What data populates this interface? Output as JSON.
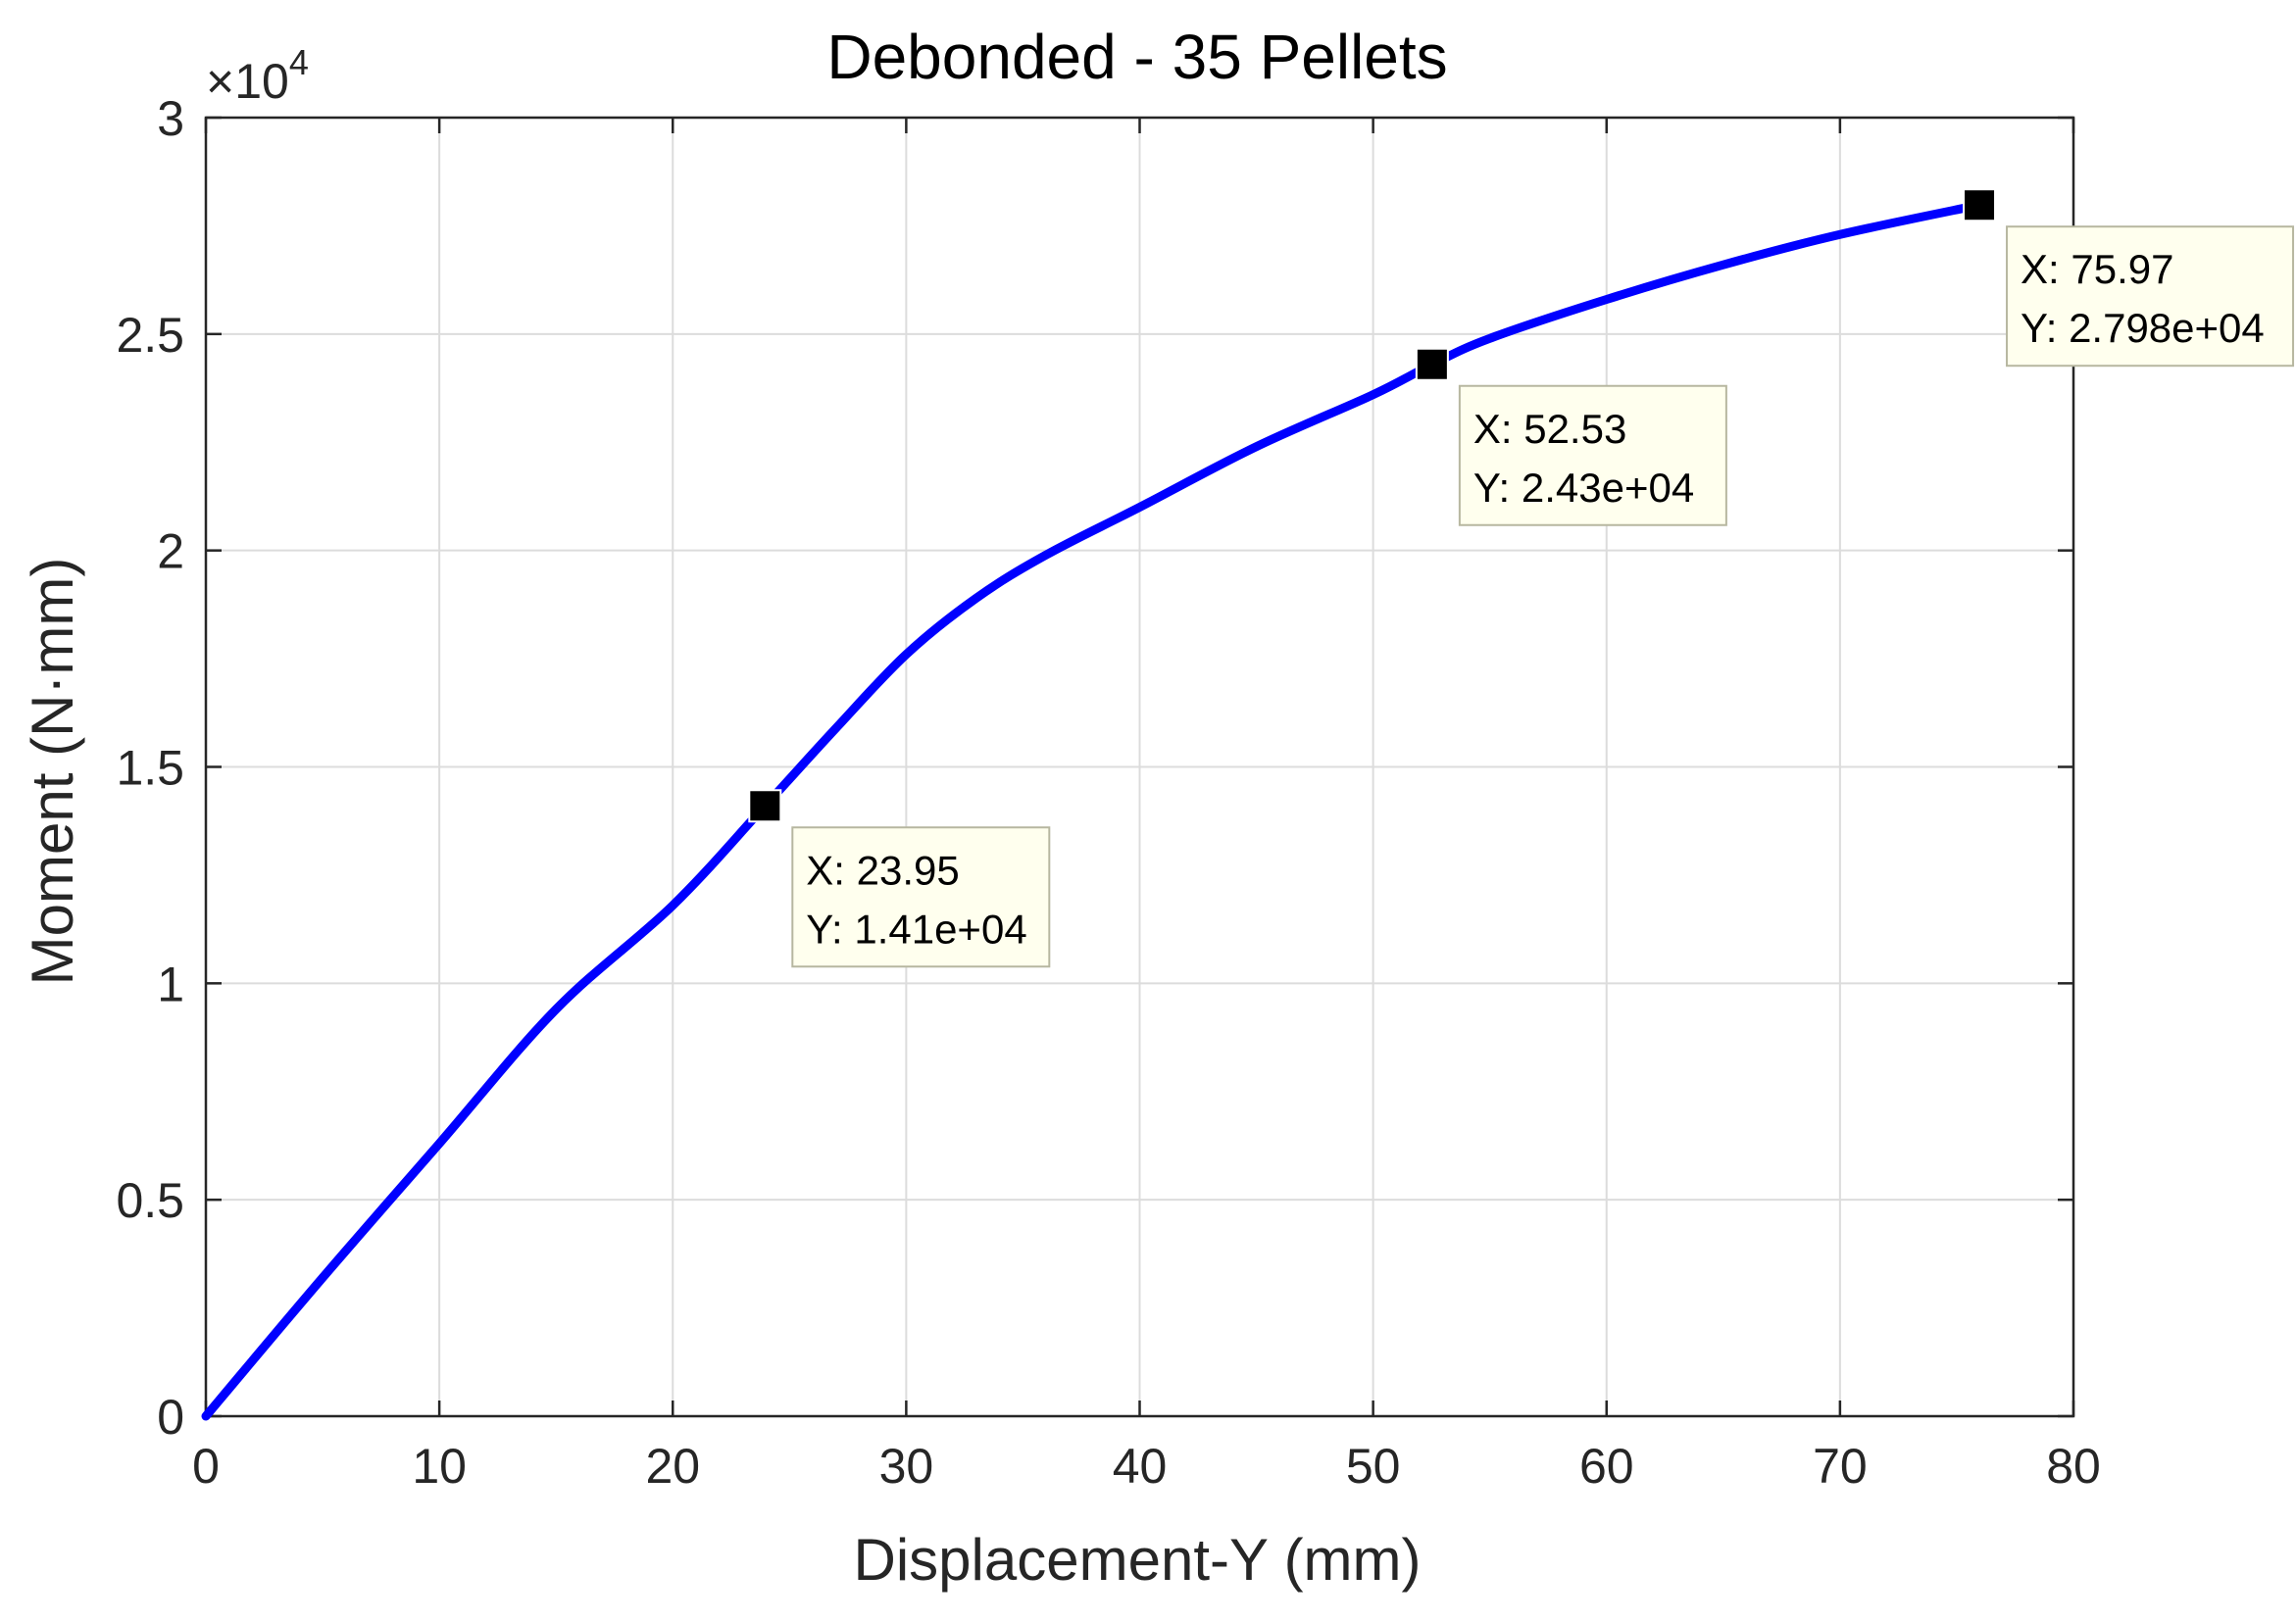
{
  "chart_data": {
    "type": "line",
    "title": "Debonded - 35 Pellets",
    "xlabel": "Displacement-Y (mm)",
    "ylabel": "Moment (N·mm)",
    "xlim": [
      0,
      80
    ],
    "ylim": [
      0,
      30000
    ],
    "x_ticks": [
      0,
      10,
      20,
      30,
      40,
      50,
      60,
      70,
      80
    ],
    "x_tick_labels": [
      "0",
      "10",
      "20",
      "30",
      "40",
      "50",
      "60",
      "70",
      "80"
    ],
    "y_ticks": [
      0,
      5000,
      10000,
      15000,
      20000,
      25000,
      30000
    ],
    "y_tick_labels": [
      "0",
      "0.5",
      "1",
      "1.5",
      "2",
      "2.5",
      "3"
    ],
    "y_exponent": {
      "multiplier": "×10",
      "power": "4"
    },
    "grid": true,
    "colors": {
      "line": "#0000ff",
      "marker": "#000000",
      "tooltip_bg": "#ffffee",
      "tooltip_border": "#b7b7a0",
      "grid": "#dcdcdc"
    },
    "series": [
      {
        "x": [
          0,
          5,
          10,
          15,
          20,
          23.95,
          27,
          30,
          33,
          36,
          40,
          45,
          50,
          52.53,
          55,
          60,
          65,
          70,
          75.97
        ],
        "y": [
          0,
          3200,
          6300,
          9400,
          11800,
          14100,
          15900,
          17600,
          18900,
          19900,
          21000,
          22400,
          23600,
          24300,
          24900,
          25800,
          26600,
          27300,
          27980
        ]
      }
    ],
    "data_tips": [
      {
        "x": 23.95,
        "y": 14100,
        "label_x": "X: 23.95",
        "label_y": "Y: 1.41e+04"
      },
      {
        "x": 52.53,
        "y": 24300,
        "label_x": "X: 52.53",
        "label_y": "Y: 2.43e+04"
      },
      {
        "x": 75.97,
        "y": 27980,
        "label_x": "X: 75.97",
        "label_y": "Y: 2.798e+04"
      }
    ]
  }
}
